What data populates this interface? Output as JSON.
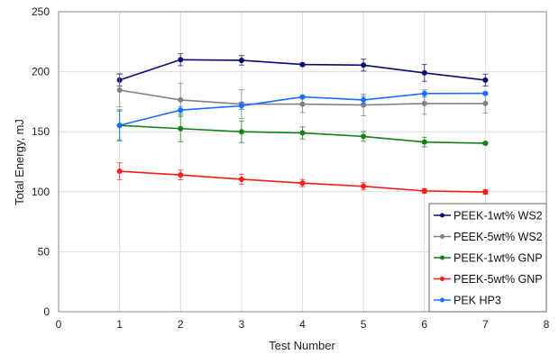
{
  "chart_data": {
    "type": "line",
    "title": "",
    "xlabel": "Test Number",
    "ylabel": "Total Energy, mJ",
    "xlim": [
      0,
      8
    ],
    "ylim": [
      0,
      250
    ],
    "xticks": [
      0,
      1,
      2,
      3,
      4,
      5,
      6,
      7,
      8
    ],
    "yticks": [
      0,
      50,
      100,
      150,
      200,
      250
    ],
    "grid": true,
    "legend_position": "bottom-right",
    "x": [
      1,
      2,
      3,
      4,
      5,
      6,
      7
    ],
    "series": [
      {
        "name": "PEEK-1wt% WS2",
        "color": "#0a0a78",
        "values": [
          193,
          210,
          209.5,
          206,
          205.5,
          199,
          193
        ],
        "errors": [
          5,
          5,
          4,
          1,
          5,
          7,
          5
        ]
      },
      {
        "name": "PEEK-5wt% WS2",
        "color": "#808080",
        "values": [
          184.7,
          176.5,
          173,
          173,
          172.3,
          173.5,
          173.5
        ],
        "errors": [
          14,
          14,
          12,
          7,
          9,
          9,
          8
        ]
      },
      {
        "name": "PEEK-1wt% GNP",
        "color": "#138013",
        "values": [
          155.3,
          152.6,
          150,
          149,
          146.1,
          141.4,
          140.4
        ],
        "errors": [
          13,
          11,
          9,
          5,
          4,
          4,
          1
        ]
      },
      {
        "name": "PEEK-5wt% GNP",
        "color": "#ff1a1a",
        "values": [
          117.1,
          114,
          110.4,
          107.2,
          104.5,
          100.7,
          99.8
        ],
        "errors": [
          7,
          4,
          4,
          3,
          3,
          2,
          2
        ]
      },
      {
        "name": "PEK HP3",
        "color": "#1a6eff",
        "values": [
          155.3,
          168,
          171.6,
          179,
          176.5,
          181.8,
          182
        ],
        "errors": [
          12,
          3,
          3,
          1,
          3,
          3,
          1
        ]
      }
    ]
  }
}
